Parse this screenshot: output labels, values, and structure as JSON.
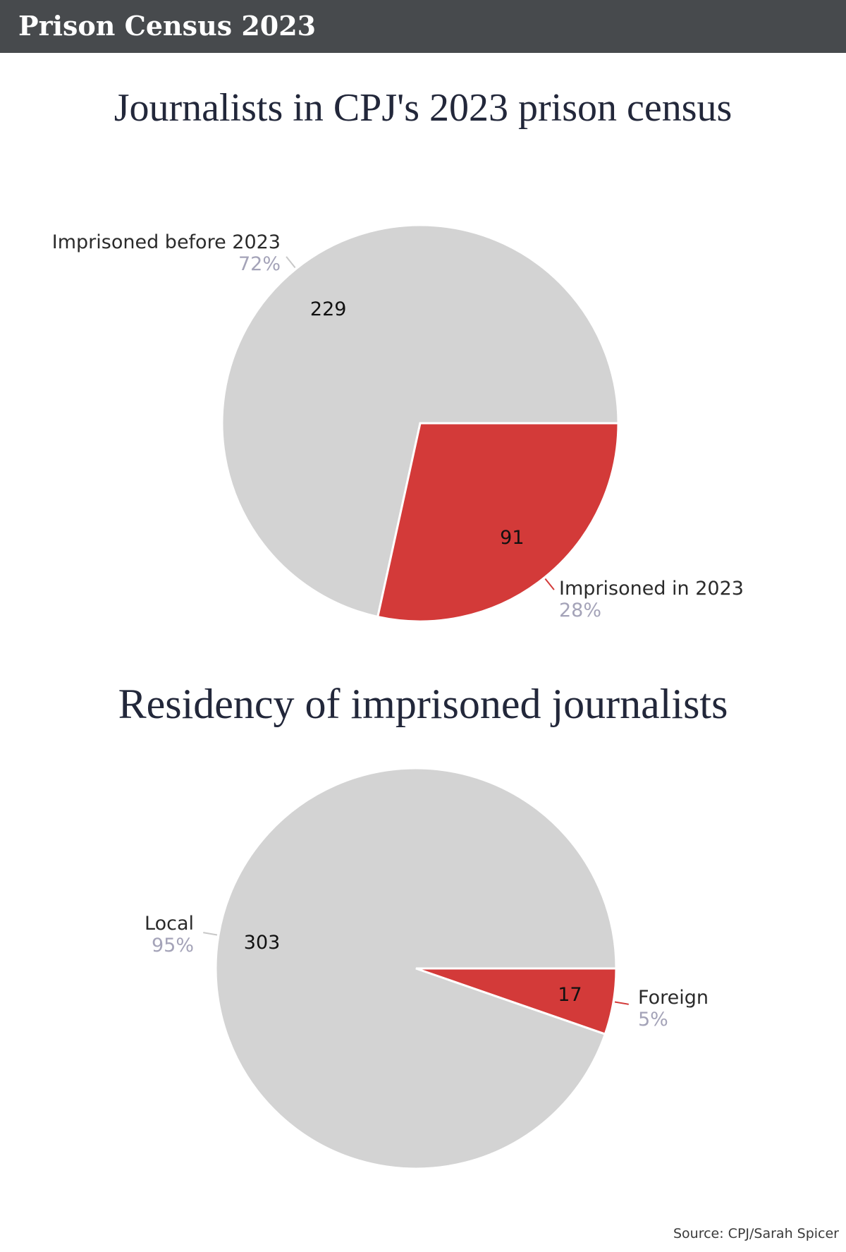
{
  "header": {
    "title": "Prison Census 2023"
  },
  "colors": {
    "grey": "#d3d3d3",
    "red": "#d33a39",
    "banner": "#474a4d"
  },
  "chart_data": [
    {
      "type": "pie",
      "title": "Journalists in CPJ's 2023 prison census",
      "slices": [
        {
          "label": "Imprisoned before 2023",
          "value": 229,
          "percent": "72%",
          "color": "#d3d3d3"
        },
        {
          "label": "Imprisoned in 2023",
          "value": 91,
          "percent": "28%",
          "color": "#d33a39"
        }
      ]
    },
    {
      "type": "pie",
      "title": "Residency of imprisoned journalists",
      "slices": [
        {
          "label": "Local",
          "value": 303,
          "percent": "95%",
          "color": "#d3d3d3"
        },
        {
          "label": "Foreign",
          "value": 17,
          "percent": "5%",
          "color": "#d33a39"
        }
      ]
    }
  ],
  "source": "Source: CPJ/Sarah Spicer"
}
